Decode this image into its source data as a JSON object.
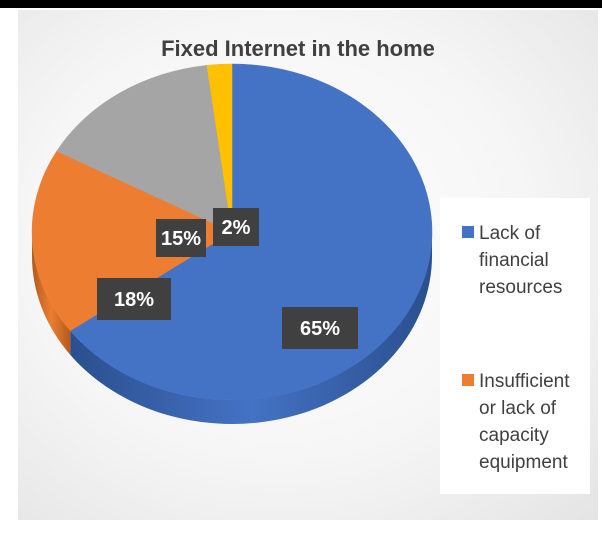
{
  "chart_data": {
    "type": "pie",
    "title": "Fixed Internet in the home",
    "series": [
      {
        "name": "Lack of financial resources",
        "value": 65,
        "label": "65%",
        "color": "#4472c4",
        "side_color": "#2b4f8e"
      },
      {
        "name": "Insufficient or lack of capacity equipment",
        "value": 18,
        "label": "18%",
        "color": "#ed7d31",
        "side_color": "#b35a1c"
      },
      {
        "name": "",
        "value": 15,
        "label": "15%",
        "color": "#a5a5a5",
        "side_color": "#7a7a7a"
      },
      {
        "name": "",
        "value": 2,
        "label": "2%",
        "color": "#ffc000",
        "side_color": "#c79300"
      }
    ],
    "legend": {
      "position": "right",
      "entries": [
        {
          "lines": [
            "Lack of",
            "financial",
            "resources"
          ],
          "color": "#4472c4"
        },
        {
          "lines": [
            "Insufficient",
            "or lack of",
            "capacity",
            "equipment"
          ],
          "color": "#ed7d31"
        }
      ]
    },
    "style": "3d-pie",
    "data_label_background": "#404040",
    "data_label_color": "#ffffff"
  }
}
